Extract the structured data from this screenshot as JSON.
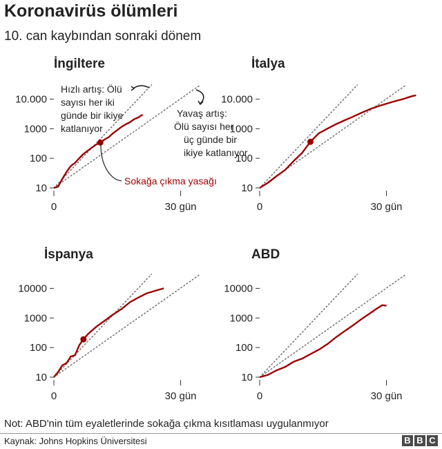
{
  "header": {
    "title": "Koronavirüs ölümleri",
    "subtitle": "10. can kaybından sonraki dönem"
  },
  "annotations": {
    "fast": [
      "Hızlı artış: Ölü",
      "sayısı her iki",
      "günde bir ikiye",
      "katlanıyor"
    ],
    "slow": [
      "Yavaş artış:",
      "Ölü sayısı her",
      "üç günde bir",
      "ikiye katlanıyor"
    ],
    "lockdown": "Sokağa çıkma yasağı"
  },
  "footer": {
    "note": "Not: ABD'nin tüm eyaletlerinde sokağa çıkma kısıtlaması uygulanmıyor",
    "source": "Kaynak: Johns Hopkins Üniversitesi",
    "logo": [
      "B",
      "B",
      "C"
    ]
  },
  "colors": {
    "series": "#9b0000",
    "guide": "#777777",
    "axis": "#333333"
  },
  "chart_data": [
    {
      "type": "line",
      "title": "İngiltere",
      "y_scale": "log",
      "x_ticks": [
        0,
        30
      ],
      "x_tick_labels": [
        "0",
        "30 gün"
      ],
      "y_ticks": [
        10,
        100,
        1000,
        10000
      ],
      "y_tick_labels": [
        "10",
        "100",
        "1000",
        "10.000"
      ],
      "xlim": [
        0,
        42
      ],
      "ylim": [
        10,
        30000
      ],
      "lockdown": {
        "x": 11,
        "y": 340
      },
      "series": [
        {
          "x": [
            0,
            1,
            2,
            3,
            4,
            5,
            6,
            7,
            8,
            9,
            10,
            11,
            12,
            13,
            14,
            15,
            16,
            17,
            18,
            19,
            20,
            21
          ],
          "y": [
            10,
            11,
            20,
            35,
            55,
            70,
            100,
            140,
            180,
            230,
            290,
            340,
            430,
            520,
            700,
            900,
            1150,
            1400,
            1650,
            2100,
            2400,
            3000
          ]
        }
      ]
    },
    {
      "type": "line",
      "title": "İtalya",
      "y_scale": "log",
      "x_ticks": [
        0,
        30
      ],
      "x_tick_labels": [
        "0",
        "30 gün"
      ],
      "y_ticks": [
        10,
        100,
        1000,
        10000
      ],
      "y_tick_labels": [
        "10",
        "100",
        "1000",
        "10.000"
      ],
      "xlim": [
        0,
        42
      ],
      "ylim": [
        10,
        30000
      ],
      "lockdown": {
        "x": 12,
        "y": 360
      },
      "series": [
        {
          "x": [
            0,
            2,
            4,
            6,
            8,
            10,
            12,
            14,
            16,
            18,
            20,
            22,
            24,
            26,
            28,
            30,
            32,
            34,
            36,
            37
          ],
          "y": [
            10,
            15,
            25,
            40,
            80,
            150,
            360,
            700,
            1000,
            1400,
            1900,
            2500,
            3400,
            4500,
            5700,
            7000,
            8500,
            10100,
            12500,
            13500
          ]
        }
      ]
    },
    {
      "type": "line",
      "title": "İspanya",
      "y_scale": "log",
      "x_ticks": [
        0,
        30
      ],
      "x_tick_labels": [
        "0",
        "30 gün"
      ],
      "y_ticks": [
        10,
        100,
        1000,
        10000
      ],
      "y_tick_labels": [
        "10",
        "100",
        "1000",
        "10000"
      ],
      "xlim": [
        0,
        42
      ],
      "ylim": [
        10,
        30000
      ],
      "lockdown": {
        "x": 7,
        "y": 190
      },
      "series": [
        {
          "x": [
            0,
            1,
            2,
            3,
            4,
            5,
            6,
            7,
            8,
            10,
            12,
            14,
            16,
            18,
            20,
            22,
            24,
            26
          ],
          "y": [
            10,
            15,
            25,
            30,
            50,
            55,
            120,
            190,
            280,
            500,
            800,
            1300,
            2000,
            3400,
            4900,
            6800,
            8300,
            10000
          ]
        }
      ]
    },
    {
      "type": "line",
      "title": "ABD",
      "y_scale": "log",
      "x_ticks": [
        0,
        30
      ],
      "x_tick_labels": [
        "0",
        "30 gün"
      ],
      "y_ticks": [
        10,
        100,
        1000,
        10000
      ],
      "y_tick_labels": [
        "10",
        "100",
        "1000",
        "10000"
      ],
      "xlim": [
        0,
        42
      ],
      "ylim": [
        10,
        30000
      ],
      "lockdown": null,
      "series": [
        {
          "x": [
            0,
            2,
            4,
            6,
            8,
            10,
            12,
            14,
            16,
            18,
            20,
            22,
            24,
            26,
            28,
            29,
            30
          ],
          "y": [
            10,
            12,
            17,
            22,
            33,
            42,
            60,
            85,
            130,
            220,
            350,
            550,
            900,
            1400,
            2200,
            2700,
            2600
          ]
        }
      ]
    }
  ]
}
